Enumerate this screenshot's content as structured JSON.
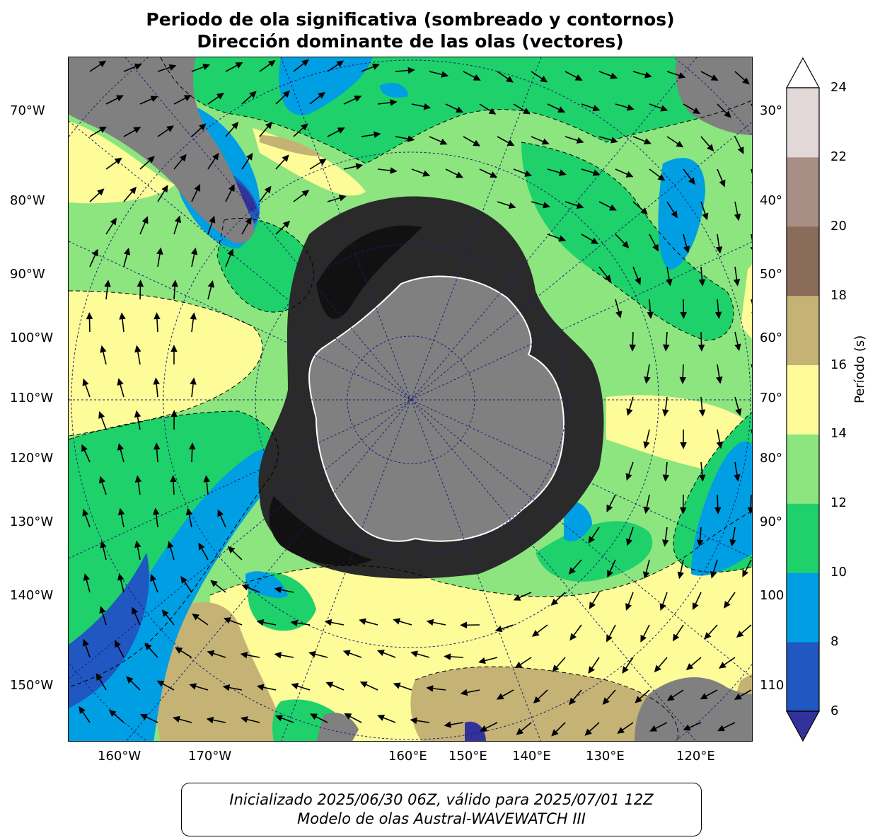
{
  "title": {
    "line1": "Periodo de ola significativa (sombreado y contornos)",
    "line2": "Dirección dominante de las olas (vectores)"
  },
  "map": {
    "left_labels": [
      "70°W",
      "80°W",
      "90°W",
      "100°W",
      "110°W",
      "120°W",
      "130°W",
      "140°W",
      "150°W"
    ],
    "right_labels": [
      "30°",
      "40°",
      "50°",
      "60°",
      "70°",
      "80°",
      "90°",
      "100",
      "110"
    ],
    "bottom_labels": [
      "160°W",
      "170°W",
      "160°E",
      "150°E",
      "140°E",
      "130°E",
      "120°E"
    ],
    "colors": {
      "land": "#808080",
      "band_6_8": "#2157c0",
      "band_8_10": "#009ee3",
      "band_10_12": "#1ed16a",
      "band_12_14": "#8ce57f",
      "band_14_16": "#fdfc98",
      "band_16_18": "#c5b376",
      "band_18_20": "#8b6b59",
      "sea_ice": "#2a2a2a"
    }
  },
  "colorbar": {
    "label": "Período (s)",
    "ticks": [
      "6",
      "8",
      "10",
      "12",
      "14",
      "16",
      "18",
      "20",
      "22",
      "24"
    ],
    "colors": [
      "#2157c0",
      "#009ee3",
      "#1ed16a",
      "#8ce57f",
      "#fdfc98",
      "#c5b376",
      "#8b6b59",
      "#a88f86",
      "#e2d8d8"
    ],
    "under_color": "#33329b",
    "over_color": "#ffffff"
  },
  "footer": {
    "line1": "Inicializado 2025/06/30 06Z, válido para 2025/07/01 12Z",
    "line2": "Modelo de olas Austral-WAVEWATCH III"
  }
}
